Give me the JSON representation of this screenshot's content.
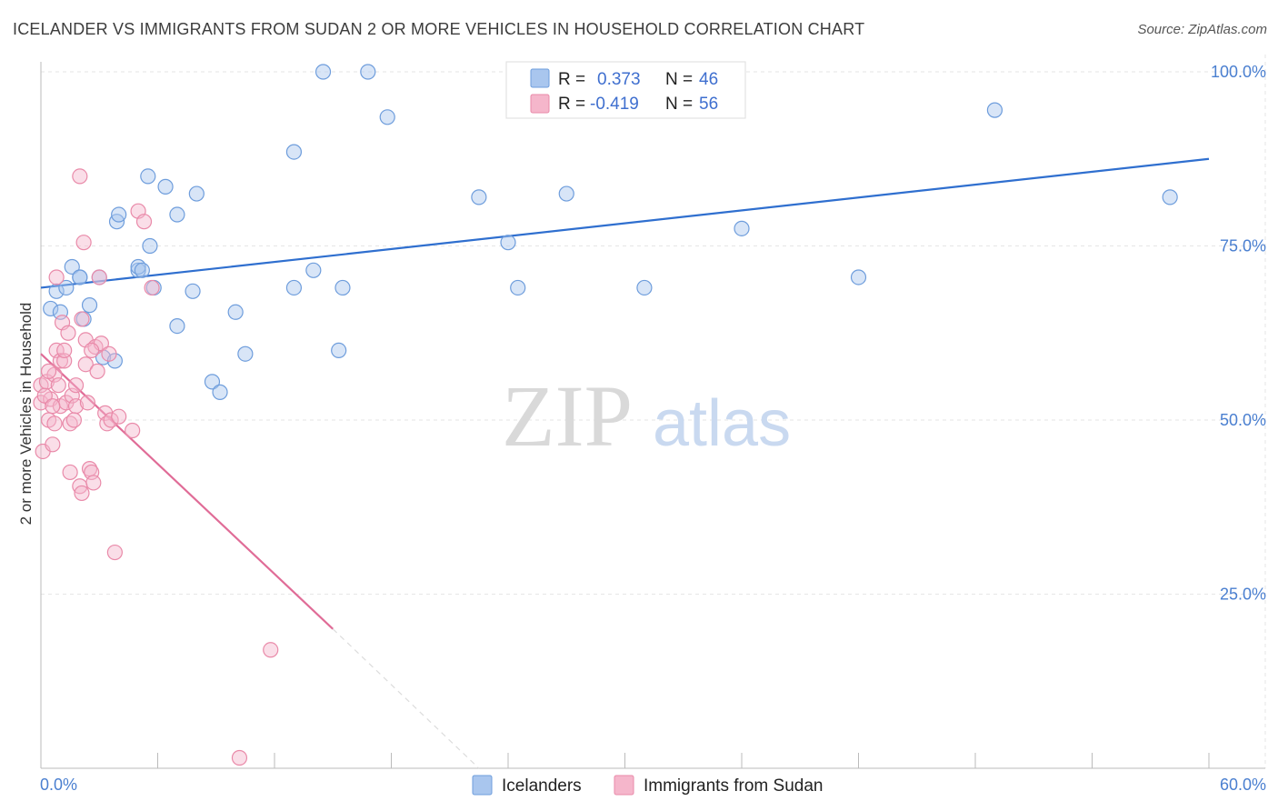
{
  "title": "ICELANDER VS IMMIGRANTS FROM SUDAN 2 OR MORE VEHICLES IN HOUSEHOLD CORRELATION CHART",
  "source": "Source: ZipAtlas.com",
  "watermark": {
    "zip": "ZIP",
    "atlas": "atlas"
  },
  "colors": {
    "blue_fill": "#a9c6ee",
    "blue_stroke": "#6e9ddc",
    "blue_line": "#2f6fcf",
    "pink_fill": "#f5b6cb",
    "pink_stroke": "#e98aa9",
    "pink_line": "#e06c97",
    "grid": "#e6e6e6",
    "tick_text": "#4a7fd0"
  },
  "legend": {
    "rows": [
      {
        "r_label": "R =",
        "r_value": "0.373",
        "n_label": "N =",
        "n_value": "46"
      },
      {
        "r_label": "R =",
        "r_value": "-0.419",
        "n_label": "N =",
        "n_value": "56"
      }
    ]
  },
  "chart_data": {
    "type": "scatter",
    "ylabel": "2 or more Vehicles in Household",
    "xlim": [
      0,
      60
    ],
    "ylim": [
      0,
      104
    ],
    "x_tick_labels": {
      "min": "0.0%",
      "max": "60.0%"
    },
    "y_ticks": [
      {
        "value": 25,
        "label": "25.0%"
      },
      {
        "value": 50,
        "label": "50.0%"
      },
      {
        "value": 75,
        "label": "75.0%"
      },
      {
        "value": 100,
        "label": "100.0%"
      }
    ],
    "grid": true,
    "legend_position": "top-center",
    "series": [
      {
        "name": "Icelanders",
        "color": "blue",
        "trend": {
          "x0": 0,
          "y0": 69.0,
          "x1": 60,
          "y1": 87.5
        },
        "points": [
          [
            0.5,
            66.0
          ],
          [
            0.8,
            68.5
          ],
          [
            1.0,
            65.5
          ],
          [
            1.3,
            69.0
          ],
          [
            1.6,
            72.0
          ],
          [
            2.0,
            70.5
          ],
          [
            2.2,
            64.5
          ],
          [
            2.5,
            66.5
          ],
          [
            3.0,
            70.5
          ],
          [
            3.2,
            59.0
          ],
          [
            3.9,
            78.5
          ],
          [
            3.8,
            58.5
          ],
          [
            4.0,
            79.5
          ],
          [
            5.0,
            71.5
          ],
          [
            5.0,
            72.0
          ],
          [
            5.2,
            71.5
          ],
          [
            5.5,
            85.0
          ],
          [
            5.8,
            69.0
          ],
          [
            5.6,
            75.0
          ],
          [
            6.4,
            83.5
          ],
          [
            7.0,
            79.5
          ],
          [
            7.0,
            63.5
          ],
          [
            7.8,
            68.5
          ],
          [
            8.0,
            82.5
          ],
          [
            8.8,
            55.5
          ],
          [
            9.2,
            54.0
          ],
          [
            10.0,
            65.5
          ],
          [
            10.5,
            59.5
          ],
          [
            13.0,
            69.0
          ],
          [
            13.0,
            88.5
          ],
          [
            14.0,
            71.5
          ],
          [
            14.5,
            100.0
          ],
          [
            15.3,
            60.0
          ],
          [
            15.5,
            69.0
          ],
          [
            16.8,
            100.0
          ],
          [
            17.8,
            93.5
          ],
          [
            22.5,
            82.0
          ],
          [
            24.0,
            75.5
          ],
          [
            24.5,
            69.0
          ],
          [
            27.0,
            82.5
          ],
          [
            31.0,
            69.0
          ],
          [
            36.0,
            77.5
          ],
          [
            42.0,
            70.5
          ],
          [
            49.0,
            94.5
          ],
          [
            58.0,
            82.0
          ],
          [
            2.0,
            70.5
          ]
        ]
      },
      {
        "name": "Immigrants from Sudan",
        "color": "pink",
        "trend": {
          "x0": 0,
          "y0": 59.5,
          "x1": 15,
          "y1": 20.0,
          "dash_x1": 24,
          "dash_y1": -4.0
        },
        "points": [
          [
            0.0,
            55.0
          ],
          [
            0.0,
            52.5
          ],
          [
            0.1,
            45.5
          ],
          [
            0.3,
            55.5
          ],
          [
            0.4,
            50.0
          ],
          [
            0.5,
            53.0
          ],
          [
            0.6,
            46.5
          ],
          [
            0.7,
            56.5
          ],
          [
            0.8,
            70.5
          ],
          [
            0.8,
            60.0
          ],
          [
            1.0,
            58.5
          ],
          [
            1.0,
            52.0
          ],
          [
            1.1,
            64.0
          ],
          [
            1.2,
            58.5
          ],
          [
            1.2,
            60.0
          ],
          [
            1.3,
            52.5
          ],
          [
            1.4,
            62.5
          ],
          [
            1.5,
            49.5
          ],
          [
            1.6,
            53.5
          ],
          [
            1.8,
            55.0
          ],
          [
            1.8,
            52.0
          ],
          [
            2.0,
            85.0
          ],
          [
            2.1,
            64.5
          ],
          [
            2.2,
            75.5
          ],
          [
            2.3,
            61.5
          ],
          [
            2.3,
            58.0
          ],
          [
            2.4,
            52.5
          ],
          [
            2.5,
            43.0
          ],
          [
            2.6,
            42.5
          ],
          [
            2.7,
            41.0
          ],
          [
            2.8,
            60.5
          ],
          [
            2.9,
            57.0
          ],
          [
            3.0,
            70.5
          ],
          [
            3.1,
            61.0
          ],
          [
            3.3,
            51.0
          ],
          [
            3.4,
            49.5
          ],
          [
            3.6,
            50.0
          ],
          [
            3.8,
            31.0
          ],
          [
            4.0,
            50.5
          ],
          [
            4.7,
            48.5
          ],
          [
            5.0,
            80.0
          ],
          [
            5.3,
            78.5
          ],
          [
            5.7,
            69.0
          ],
          [
            11.8,
            17.0
          ],
          [
            10.2,
            1.5
          ],
          [
            0.4,
            57.0
          ],
          [
            0.7,
            49.5
          ],
          [
            1.5,
            42.5
          ],
          [
            2.0,
            40.5
          ],
          [
            2.1,
            39.5
          ],
          [
            0.2,
            53.5
          ],
          [
            0.9,
            55.0
          ],
          [
            1.7,
            50.0
          ],
          [
            3.5,
            59.5
          ],
          [
            2.6,
            60.0
          ],
          [
            0.6,
            52.0
          ]
        ]
      }
    ]
  }
}
